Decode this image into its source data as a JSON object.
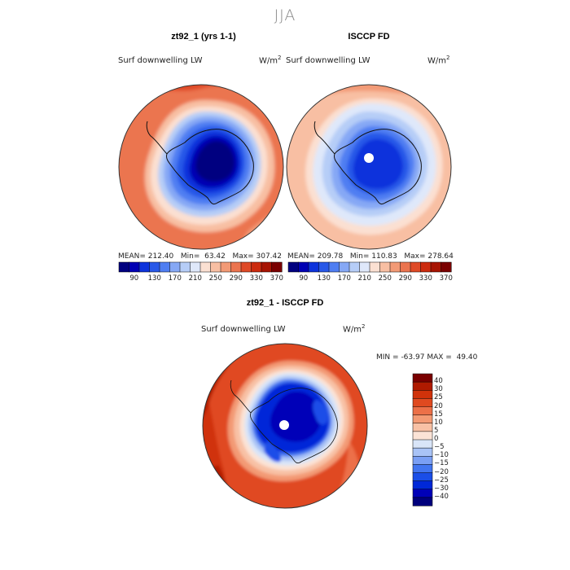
{
  "chart_data": [
    {
      "type": "heatmap",
      "projection": "south-polar-stereographic",
      "title": "zt92_1 (yrs 1-1)",
      "variable": "Surf downwelling LW",
      "units": "W/m",
      "units_exp": "2",
      "stats": {
        "mean_label": "MEAN=",
        "mean": "212.40",
        "min_label": "Min=",
        "min": "63.42",
        "max_label": "Max=",
        "max": "307.42"
      },
      "colorbar": {
        "levels": [
          70,
          90,
          110,
          130,
          150,
          170,
          190,
          210,
          230,
          250,
          270,
          290,
          310,
          330,
          350,
          370
        ],
        "tick_labels": [
          "90",
          "130",
          "170",
          "210",
          "250",
          "290",
          "330",
          "370"
        ],
        "colors": [
          "#000080",
          "#0000b4",
          "#0d33dc",
          "#2858e8",
          "#4f7ef2",
          "#86a8f5",
          "#b6cdf7",
          "#dfe8fa",
          "#fbe0d2",
          "#f8bfa3",
          "#f29a76",
          "#eb744f",
          "#df4a27",
          "#cc2b0e",
          "#a71403",
          "#7a0000"
        ]
      }
    },
    {
      "type": "heatmap",
      "projection": "south-polar-stereographic",
      "title": "ISCCP FD",
      "variable": "Surf downwelling LW",
      "units": "W/m",
      "units_exp": "2",
      "stats": {
        "mean_label": "MEAN=",
        "mean": "209.78",
        "min_label": "Min=",
        "min": "110.83",
        "max_label": "Max=",
        "max": "278.64"
      },
      "colorbar": {
        "levels": [
          70,
          90,
          110,
          130,
          150,
          170,
          190,
          210,
          230,
          250,
          270,
          290,
          310,
          330,
          350,
          370
        ],
        "tick_labels": [
          "90",
          "130",
          "170",
          "210",
          "250",
          "290",
          "330",
          "370"
        ],
        "colors": [
          "#000080",
          "#0000b4",
          "#0d33dc",
          "#2858e8",
          "#4f7ef2",
          "#86a8f5",
          "#b6cdf7",
          "#dfe8fa",
          "#fbe0d2",
          "#f8bfa3",
          "#f29a76",
          "#eb744f",
          "#df4a27",
          "#cc2b0e",
          "#a71403",
          "#7a0000"
        ]
      }
    },
    {
      "type": "heatmap",
      "projection": "south-polar-stereographic",
      "title": "zt92_1 - ISCCP FD",
      "variable": "Surf downwelling LW",
      "units": "W/m",
      "units_exp": "2",
      "stats": {
        "min_label": "MIN =",
        "min": "-63.97",
        "max_label": "MAX =",
        "max": "49.40"
      },
      "colorbar": {
        "levels": [
          -40,
          -30,
          -25,
          -20,
          -15,
          -10,
          -5,
          0,
          5,
          10,
          15,
          20,
          25,
          30,
          40
        ],
        "tick_labels": [
          "40",
          "30",
          "25",
          "20",
          "15",
          "10",
          "5",
          "0",
          "−5",
          "−10",
          "−15",
          "−20",
          "−25",
          "−30",
          "−40"
        ],
        "colors": [
          "#00007c",
          "#0000b8",
          "#0028d8",
          "#1a4ee8",
          "#4275f0",
          "#7a9ff4",
          "#a9c3f6",
          "#d9e5f8",
          "#fbe3d6",
          "#f8c1a5",
          "#f39a74",
          "#ec7048",
          "#e04a20",
          "#d0320a",
          "#b01a00",
          "#7a0000"
        ]
      }
    }
  ],
  "figure": {
    "suptitle": "JJA"
  }
}
